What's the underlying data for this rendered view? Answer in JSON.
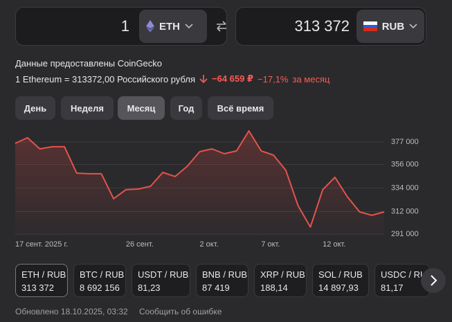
{
  "converter": {
    "from": {
      "amount": "1",
      "currency": "ETH"
    },
    "to": {
      "amount": "313 372",
      "currency": "RUB"
    }
  },
  "source": "Данные предоставлены CoinGecko",
  "rate": "1 Ethereum = 313372,00 Российского рубля",
  "change": {
    "amount": "−64 659 ₽",
    "percent": "−17,1%",
    "period": "за месяц"
  },
  "tabs": [
    "День",
    "Неделя",
    "Месяц",
    "Год",
    "Всё время"
  ],
  "active_tab": 2,
  "chart_data": {
    "type": "line",
    "categories": [
      "17 сент. 2025 г.",
      null,
      null,
      null,
      null,
      null,
      null,
      null,
      null,
      "26 сент.",
      null,
      null,
      null,
      null,
      null,
      "2 окт.",
      null,
      null,
      null,
      null,
      "7 окт.",
      null,
      null,
      null,
      null,
      "12 окт.",
      null,
      null,
      null,
      null,
      null
    ],
    "values": [
      375700,
      380900,
      370500,
      372500,
      372500,
      347900,
      347300,
      347300,
      324000,
      332400,
      333000,
      335600,
      348500,
      344700,
      354400,
      367900,
      370500,
      366000,
      368600,
      387300,
      368600,
      364700,
      350500,
      317500,
      297500,
      332400,
      344000,
      325900,
      311700,
      308500,
      311700
    ],
    "color": "#e5534b",
    "ylim": [
      289700,
      389900
    ],
    "yticks": [
      {
        "value": 377000,
        "label": "377 000"
      },
      {
        "value": 356000,
        "label": "356 000"
      },
      {
        "value": 334000,
        "label": "334 000"
      },
      {
        "value": 312000,
        "label": "312 000"
      },
      {
        "value": 291000,
        "label": "291 000"
      }
    ],
    "grid": true
  },
  "pairs": [
    {
      "pair": "ETH / RUB",
      "price": "313 372"
    },
    {
      "pair": "BTC / RUB",
      "price": "8 692 156"
    },
    {
      "pair": "USDT / RUB",
      "price": "81,23"
    },
    {
      "pair": "BNB / RUB",
      "price": "87 419"
    },
    {
      "pair": "XRP / RUB",
      "price": "188,14"
    },
    {
      "pair": "SOL / RUB",
      "price": "14 897,93"
    },
    {
      "pair": "USDC / RUB",
      "price": "81,17"
    }
  ],
  "footer": {
    "updated": "Обновлено 18.10.2025, 03:32",
    "report": "Сообщить об ошибке"
  }
}
